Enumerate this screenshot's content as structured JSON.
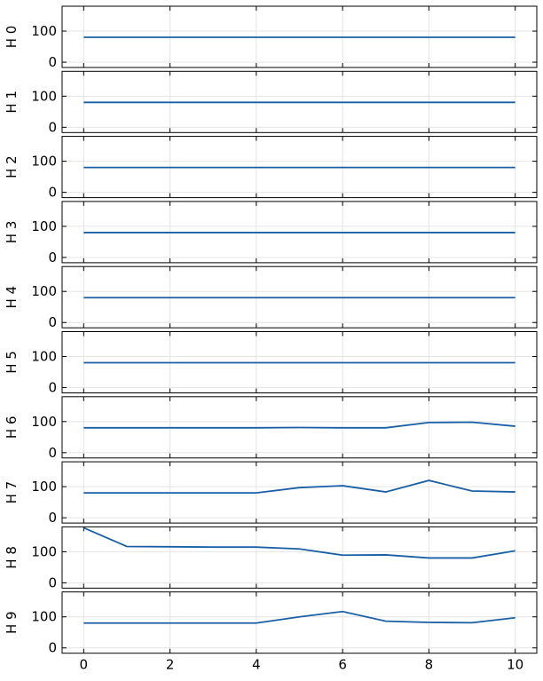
{
  "chart_data": [
    {
      "type": "line",
      "ylabel": "H 0",
      "x": [
        0,
        1,
        2,
        3,
        4,
        5,
        6,
        7,
        8,
        9,
        10
      ],
      "series": [
        {
          "color": "#1a5fa6",
          "values": [
            80,
            80,
            80,
            80,
            80,
            80,
            80,
            80,
            80,
            80,
            80
          ]
        }
      ],
      "xlim": [
        -0.5,
        10.5
      ],
      "xticks": [
        0,
        2,
        4,
        6,
        8,
        10
      ],
      "ylim": [
        -17,
        180
      ],
      "yticks": [
        0,
        100
      ],
      "grid": true
    },
    {
      "type": "line",
      "ylabel": "H 1",
      "x": [
        0,
        1,
        2,
        3,
        4,
        5,
        6,
        7,
        8,
        9,
        10
      ],
      "series": [
        {
          "color": "#1a5fa6",
          "values": [
            80,
            80,
            80,
            80,
            80,
            80,
            80,
            80,
            80,
            80,
            80
          ]
        }
      ],
      "xlim": [
        -0.5,
        10.5
      ],
      "xticks": [
        0,
        2,
        4,
        6,
        8,
        10
      ],
      "ylim": [
        -17,
        180
      ],
      "yticks": [
        0,
        100
      ],
      "grid": true
    },
    {
      "type": "line",
      "ylabel": "H 2",
      "x": [
        0,
        1,
        2,
        3,
        4,
        5,
        6,
        7,
        8,
        9,
        10
      ],
      "series": [
        {
          "color": "#1a5fa6",
          "values": [
            80,
            80,
            80,
            80,
            80,
            80,
            80,
            80,
            80,
            80,
            80
          ]
        }
      ],
      "xlim": [
        -0.5,
        10.5
      ],
      "xticks": [
        0,
        2,
        4,
        6,
        8,
        10
      ],
      "ylim": [
        -17,
        180
      ],
      "yticks": [
        0,
        100
      ],
      "grid": true
    },
    {
      "type": "line",
      "ylabel": "H 3",
      "x": [
        0,
        1,
        2,
        3,
        4,
        5,
        6,
        7,
        8,
        9,
        10
      ],
      "series": [
        {
          "color": "#1a5fa6",
          "values": [
            80,
            80,
            80,
            80,
            80,
            80,
            80,
            80,
            80,
            80,
            80
          ]
        }
      ],
      "xlim": [
        -0.5,
        10.5
      ],
      "xticks": [
        0,
        2,
        4,
        6,
        8,
        10
      ],
      "ylim": [
        -17,
        180
      ],
      "yticks": [
        0,
        100
      ],
      "grid": true
    },
    {
      "type": "line",
      "ylabel": "H 4",
      "x": [
        0,
        1,
        2,
        3,
        4,
        5,
        6,
        7,
        8,
        9,
        10
      ],
      "series": [
        {
          "color": "#1a5fa6",
          "values": [
            80,
            80,
            80,
            80,
            80,
            80,
            80,
            80,
            80,
            80,
            80
          ]
        }
      ],
      "xlim": [
        -0.5,
        10.5
      ],
      "xticks": [
        0,
        2,
        4,
        6,
        8,
        10
      ],
      "ylim": [
        -17,
        180
      ],
      "yticks": [
        0,
        100
      ],
      "grid": true
    },
    {
      "type": "line",
      "ylabel": "H 5",
      "x": [
        0,
        1,
        2,
        3,
        4,
        5,
        6,
        7,
        8,
        9,
        10
      ],
      "series": [
        {
          "color": "#1a5fa6",
          "values": [
            80,
            80,
            80,
            80,
            80,
            80,
            80,
            80,
            80,
            80,
            80
          ]
        }
      ],
      "xlim": [
        -0.5,
        10.5
      ],
      "xticks": [
        0,
        2,
        4,
        6,
        8,
        10
      ],
      "ylim": [
        -17,
        180
      ],
      "yticks": [
        0,
        100
      ],
      "grid": true
    },
    {
      "type": "line",
      "ylabel": "H 6",
      "x": [
        0,
        1,
        2,
        3,
        4,
        5,
        6,
        7,
        8,
        9,
        10
      ],
      "series": [
        {
          "color": "#1a5fa6",
          "values": [
            80,
            80,
            80,
            80,
            80,
            81,
            80,
            80,
            97,
            98,
            85
          ]
        }
      ],
      "xlim": [
        -0.5,
        10.5
      ],
      "xticks": [
        0,
        2,
        4,
        6,
        8,
        10
      ],
      "ylim": [
        -17,
        180
      ],
      "yticks": [
        0,
        100
      ],
      "grid": true
    },
    {
      "type": "line",
      "ylabel": "H 7",
      "x": [
        0,
        1,
        2,
        3,
        4,
        5,
        6,
        7,
        8,
        9,
        10
      ],
      "series": [
        {
          "color": "#1a5fa6",
          "values": [
            80,
            80,
            80,
            80,
            80,
            97,
            103,
            83,
            120,
            86,
            83
          ]
        }
      ],
      "xlim": [
        -0.5,
        10.5
      ],
      "xticks": [
        0,
        2,
        4,
        6,
        8,
        10
      ],
      "ylim": [
        -17,
        180
      ],
      "yticks": [
        0,
        100
      ],
      "grid": true
    },
    {
      "type": "line",
      "ylabel": "H 8",
      "x": [
        0,
        1,
        2,
        3,
        4,
        5,
        6,
        7,
        8,
        9,
        10
      ],
      "series": [
        {
          "color": "#1a5fa6",
          "values": [
            177,
            117,
            116,
            115,
            115,
            109,
            89,
            90,
            80,
            80,
            103
          ]
        }
      ],
      "xlim": [
        -0.5,
        10.5
      ],
      "xticks": [
        0,
        2,
        4,
        6,
        8,
        10
      ],
      "ylim": [
        -17,
        180
      ],
      "yticks": [
        0,
        100
      ],
      "grid": true
    },
    {
      "type": "line",
      "ylabel": "H 9",
      "x": [
        0,
        1,
        2,
        3,
        4,
        5,
        6,
        7,
        8,
        9,
        10
      ],
      "series": [
        {
          "color": "#1a5fa6",
          "values": [
            80,
            80,
            80,
            80,
            80,
            100,
            117,
            86,
            82,
            81,
            97
          ]
        }
      ],
      "xlim": [
        -0.5,
        10.5
      ],
      "xticks": [
        0,
        2,
        4,
        6,
        8,
        10
      ],
      "ylim": [
        -17,
        180
      ],
      "yticks": [
        0,
        100
      ],
      "grid": true
    }
  ]
}
